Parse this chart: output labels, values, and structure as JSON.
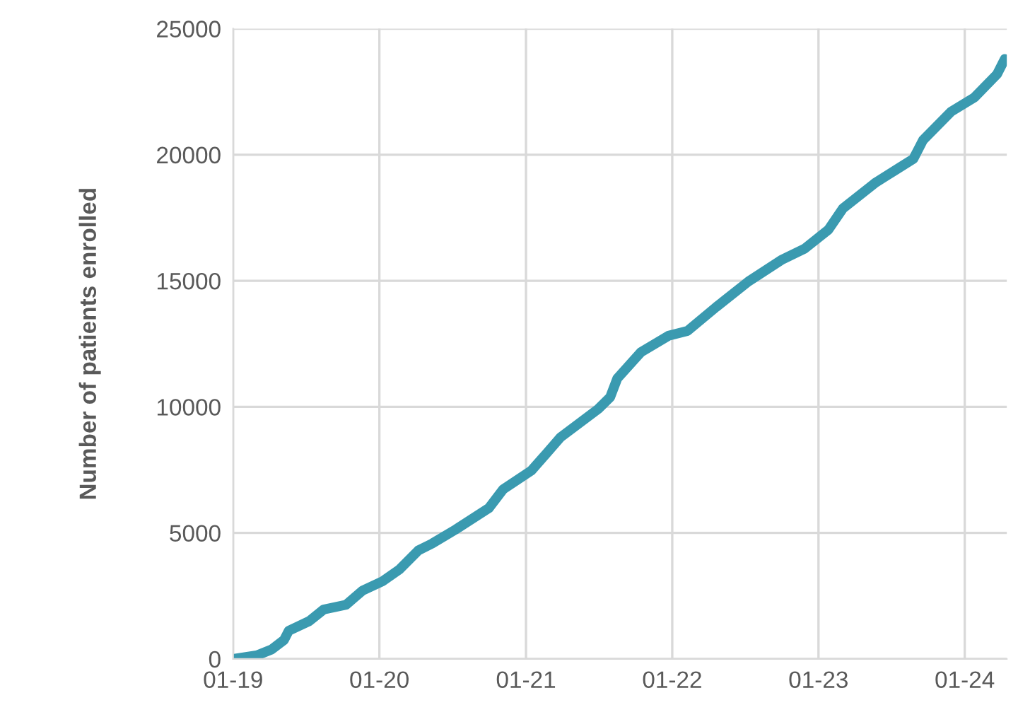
{
  "chart_data": {
    "type": "line",
    "ylabel": "Number of patients enrolled",
    "x": [
      "2019-01-01",
      "2019-03-03",
      "2019-04-07",
      "2019-05-08",
      "2019-05-20",
      "2019-07-10",
      "2019-08-15",
      "2019-10-10",
      "2019-11-20",
      "2020-01-10",
      "2020-02-20",
      "2020-04-07",
      "2020-05-12",
      "2020-07-10",
      "2020-09-30",
      "2020-11-05",
      "2021-01-15",
      "2021-02-20",
      "2021-03-28",
      "2021-05-14",
      "2021-06-30",
      "2021-07-30",
      "2021-08-17",
      "2021-10-15",
      "2021-12-23",
      "2022-02-08",
      "2022-04-20",
      "2022-07-10",
      "2022-09-30",
      "2022-11-28",
      "2023-01-26",
      "2023-03-03",
      "2023-05-24",
      "2023-08-26",
      "2023-09-19",
      "2023-11-28",
      "2024-01-25",
      "2024-03-22",
      "2024-04-10"
    ],
    "series": [
      {
        "color": "#3a9ab0",
        "values": [
          0,
          150,
          375,
          750,
          1120,
          1500,
          1960,
          2150,
          2710,
          3090,
          3550,
          4300,
          4580,
          5140,
          5980,
          6730,
          7480,
          8130,
          8790,
          9350,
          9910,
          10380,
          11130,
          12170,
          12820,
          13010,
          13950,
          14970,
          15820,
          16280,
          17030,
          17870,
          18900,
          19840,
          20580,
          21710,
          22270,
          23200,
          23800
        ]
      }
    ],
    "xlim": [
      "2019-01-01",
      "2024-04-15"
    ],
    "xticks": [
      {
        "value": "2019-01-01",
        "label": "01-19"
      },
      {
        "value": "2020-01-01",
        "label": "01-20"
      },
      {
        "value": "2021-01-01",
        "label": "01-21"
      },
      {
        "value": "2022-01-01",
        "label": "01-22"
      },
      {
        "value": "2023-01-01",
        "label": "01-23"
      },
      {
        "value": "2024-01-01",
        "label": "01-24"
      }
    ],
    "ylim": [
      0,
      25000
    ],
    "yticks": [
      0,
      5000,
      10000,
      15000,
      20000,
      25000
    ],
    "grid": true,
    "marker": "none",
    "line_style": "solid",
    "legend": false
  }
}
